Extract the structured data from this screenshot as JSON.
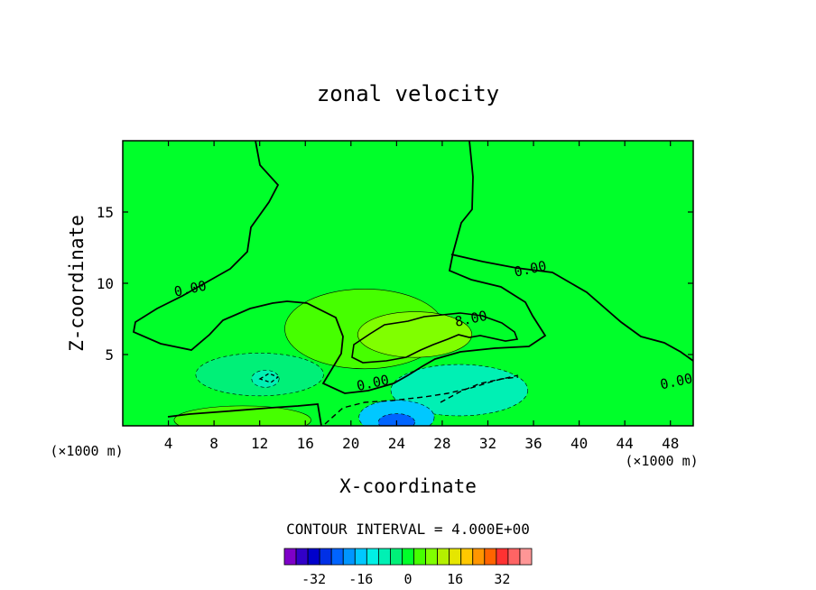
{
  "chart_data": {
    "type": "heatmap",
    "title": "zonal velocity",
    "xlabel": "X-coordinate",
    "ylabel": "Z-coordinate",
    "x_unit_label": "(×1000 m)",
    "x_ticks": [
      4,
      8,
      12,
      16,
      20,
      24,
      28,
      32,
      36,
      40,
      44,
      48
    ],
    "y_ticks": [
      5,
      10,
      15
    ],
    "xlim": [
      0,
      50
    ],
    "ylim": [
      0,
      20
    ],
    "contour_interval_label": "CONTOUR INTERVAL = 4.000E+00",
    "contour_labels": [
      {
        "text": "0.00",
        "x": 6,
        "z": 9.3
      },
      {
        "text": "0.00",
        "x": 35.8,
        "z": 10.7
      },
      {
        "text": "8.00",
        "x": 30.6,
        "z": 7.2
      },
      {
        "text": "0.00",
        "x": 22,
        "z": 2.7
      },
      {
        "text": "0.00",
        "x": 48.6,
        "z": 2.8
      }
    ],
    "colorbar": {
      "ticks": [
        -32,
        -16,
        0,
        16,
        32
      ],
      "tick_labels": [
        "-32",
        "-16",
        "0",
        "16",
        "32"
      ],
      "levels": [
        -38,
        -34,
        -30,
        -26,
        -22,
        -18,
        -14,
        -10,
        -6,
        -2,
        2,
        6,
        10,
        14,
        18,
        22,
        26,
        30,
        34,
        38
      ],
      "colors": [
        "#7e00c8",
        "#3200c8",
        "#0000cc",
        "#0030e6",
        "#0064ff",
        "#0096ff",
        "#00c8ff",
        "#00f0e6",
        "#00f0b4",
        "#00f078",
        "#00ff2a",
        "#46ff00",
        "#80ff00",
        "#b4f000",
        "#e6e600",
        "#ffc800",
        "#ff9600",
        "#ff6400",
        "#ff3232",
        "#ff6464",
        "#ff9696"
      ]
    },
    "background_field": 0,
    "regions": [
      {
        "value": 4,
        "x": 21.2,
        "z": 6.8,
        "rx": 7,
        "rz": 2.8
      },
      {
        "value": 8,
        "x": 25.6,
        "z": 6.4,
        "rx": 5,
        "rz": 1.6
      },
      {
        "value": -4,
        "x": 12,
        "z": 3.6,
        "rx": 5.6,
        "rz": 1.5
      },
      {
        "value": -8,
        "x": 12.5,
        "z": 3.3,
        "rx": 1.2,
        "rz": 0.6
      },
      {
        "value": -8,
        "x": 29.5,
        "z": 2.5,
        "rx": 6,
        "rz": 1.8
      },
      {
        "value": -16,
        "x": 24,
        "z": 0.6,
        "rx": 3.3,
        "rz": 1.2
      },
      {
        "value": -24,
        "x": 24,
        "z": 0.25,
        "rx": 1.6,
        "rz": 0.6
      },
      {
        "value": 8,
        "x": 11.5,
        "z": 0.2,
        "rx": 2.8,
        "rz": 0.6
      },
      {
        "value": 4,
        "x": 10.5,
        "z": 0.4,
        "rx": 6,
        "rz": 1
      }
    ]
  }
}
